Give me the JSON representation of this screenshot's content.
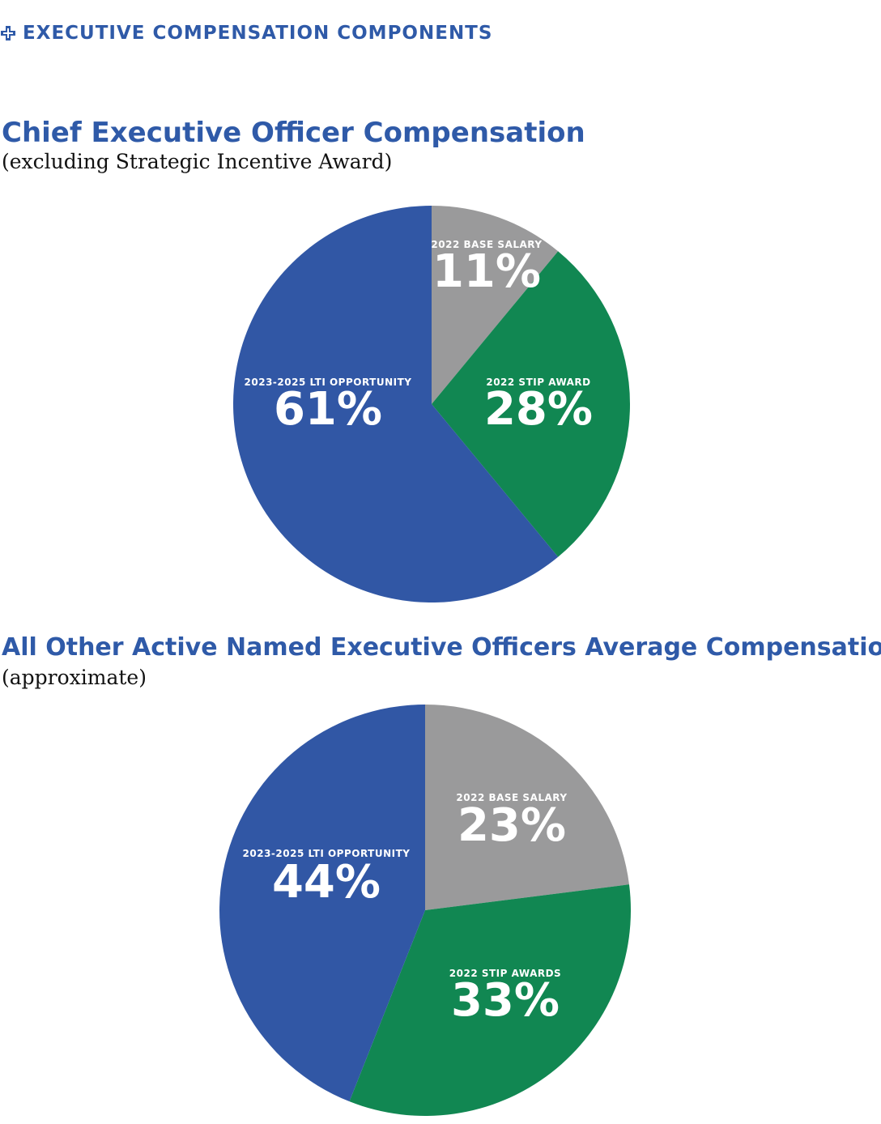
{
  "header": {
    "section_title": "EXECUTIVE COMPENSATION COMPONENTS",
    "icon": "cross-icon",
    "accent_color": "#2f5aa8"
  },
  "chart_data": [
    {
      "type": "pie",
      "title": "Chief Executive Officer Compensation",
      "subtitle": "(excluding Strategic Incentive Award)",
      "slices": [
        {
          "label": "2022 BASE SALARY",
          "value": 11,
          "value_label": "11%",
          "color": "#9a9a9b"
        },
        {
          "label": "2022 STIP AWARD",
          "value": 28,
          "value_label": "28%",
          "color": "#118752"
        },
        {
          "label": "2023-2025 LTI OPPORTUNITY",
          "value": 61,
          "value_label": "61%",
          "color": "#3157a5"
        }
      ]
    },
    {
      "type": "pie",
      "title": "All Other Active Named Executive Officers Average Compensation",
      "subtitle": "(approximate)",
      "slices": [
        {
          "label": "2022 BASE SALARY",
          "value": 23,
          "value_label": "23%",
          "color": "#9a9a9b"
        },
        {
          "label": "2022 STIP AWARDS",
          "value": 33,
          "value_label": "33%",
          "color": "#118752"
        },
        {
          "label": "2023-2025 LTI OPPORTUNITY",
          "value": 44,
          "value_label": "44%",
          "color": "#3157a5"
        }
      ]
    }
  ]
}
